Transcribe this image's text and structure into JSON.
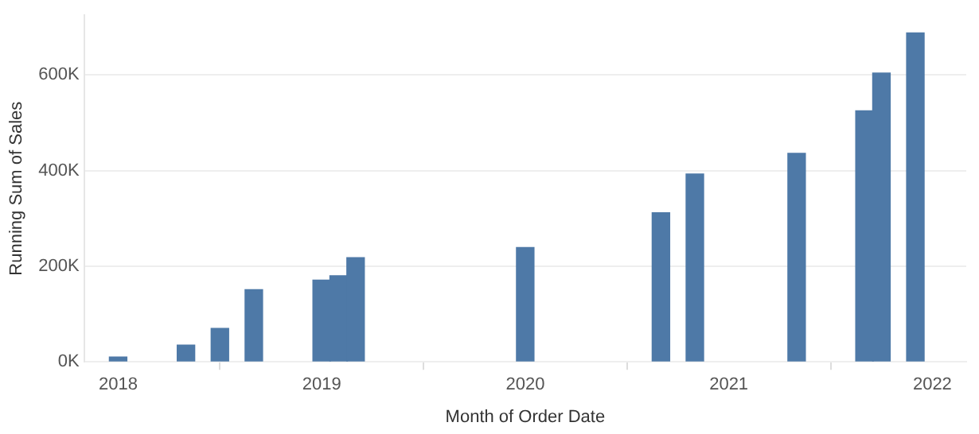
{
  "chart_data": {
    "type": "bar",
    "xlabel": "Month of Order Date",
    "ylabel": "Running Sum of Sales",
    "x": [
      "2018-01",
      "2018-05",
      "2018-07",
      "2018-09",
      "2019-01",
      "2019-02",
      "2019-03",
      "2020-01",
      "2020-09",
      "2020-11",
      "2021-05",
      "2021-09",
      "2021-10",
      "2021-12"
    ],
    "values": [
      10000,
      35000,
      70000,
      151000,
      171000,
      180000,
      218000,
      239000,
      312000,
      393000,
      436000,
      525000,
      604000,
      688000
    ],
    "color": "#4e79a7",
    "xlim": [
      "2017-11",
      "2022-03"
    ],
    "xticks": [
      "2018",
      "2019",
      "2020",
      "2021",
      "2022"
    ],
    "ylim": [
      0,
      725000
    ],
    "yticks": [
      {
        "value": 0,
        "label": "0K"
      },
      {
        "value": 200000,
        "label": "200K"
      },
      {
        "value": 400000,
        "label": "400K"
      },
      {
        "value": 600000,
        "label": "600K"
      }
    ],
    "grid": "y",
    "legend": false
  }
}
